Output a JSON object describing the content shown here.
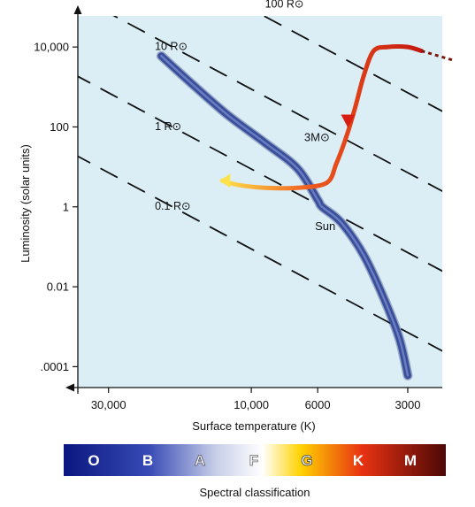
{
  "chart_data": {
    "type": "scatter",
    "title": "",
    "xlabel": "Surface temperature (K)",
    "ylabel": "Luminosity (solar units)",
    "x_scale": "log",
    "x_reversed": true,
    "x_ticks": [
      {
        "value": 30000,
        "label": "30,000"
      },
      {
        "value": 10000,
        "label": "10,000"
      },
      {
        "value": 6000,
        "label": "6000"
      },
      {
        "value": 3000,
        "label": "3000"
      }
    ],
    "y_scale": "log",
    "y_ticks": [
      {
        "value": 10000,
        "label": "10,000"
      },
      {
        "value": 100,
        "label": "100"
      },
      {
        "value": 1,
        "label": "1"
      },
      {
        "value": 0.01,
        "label": "0.01"
      },
      {
        "value": 0.0001,
        "label": ".0001"
      }
    ],
    "xlim": [
      38000,
      2300
    ],
    "ylim": [
      3e-05,
      60000
    ],
    "grid": false,
    "constant_radius_lines": [
      {
        "label": "100 R⊙",
        "radius": 100
      },
      {
        "label": "10 R⊙",
        "radius": 10
      },
      {
        "label": "1 R⊙",
        "radius": 1
      },
      {
        "label": "0.1 R⊙",
        "radius": 0.1
      }
    ],
    "series": [
      {
        "name": "",
        "kind": "main-sequence",
        "points": [
          [
            20000,
            6000
          ],
          [
            16000,
            1300
          ],
          [
            12000,
            200
          ],
          [
            9000,
            40
          ],
          [
            7000,
            9
          ],
          [
            6000,
            1.5
          ],
          [
            5800,
            1
          ],
          [
            5000,
            0.4
          ],
          [
            4200,
            0.06
          ],
          [
            3600,
            0.005
          ],
          [
            3200,
            0.0005
          ],
          [
            3000,
            6e-05
          ]
        ]
      },
      {
        "name": "3M⊙",
        "kind": "evolutionary-track",
        "points": [
          [
            12500,
            4.5
          ],
          [
            11000,
            3.5
          ],
          [
            9000,
            3
          ],
          [
            7000,
            3
          ],
          [
            5600,
            4
          ],
          [
            5200,
            12
          ],
          [
            4800,
            60
          ],
          [
            4500,
            300
          ],
          [
            4200,
            2000
          ],
          [
            3900,
            8000
          ],
          [
            3500,
            10000
          ],
          [
            3000,
            10000
          ],
          [
            2700,
            8000
          ]
        ],
        "extension_points": [
          [
            2700,
            8000
          ],
          [
            2500,
            5000
          ]
        ]
      }
    ],
    "annotations": [
      {
        "label": "Sun",
        "x": 5800,
        "y": 1
      },
      {
        "label": "3M⊙",
        "x": 5000,
        "y": 60
      }
    ],
    "spectral_bar": {
      "title": "Spectral classification",
      "classes": [
        "O",
        "B",
        "A",
        "F",
        "G",
        "K",
        "M"
      ]
    }
  },
  "colors": {
    "background": "#dbeef6",
    "main_sequence": "#3a4f9c",
    "track_start": "#ffe14a",
    "track_mid": "#ef5a1e",
    "track_end": "#c4170f",
    "extension": "#7d150f",
    "radius_lines": "#111111",
    "spectral_gradient": [
      "#0b1780",
      "#3649b4",
      "#c9d0e8",
      "#ffffff",
      "#ffd300",
      "#e83212",
      "#4c0805"
    ]
  }
}
